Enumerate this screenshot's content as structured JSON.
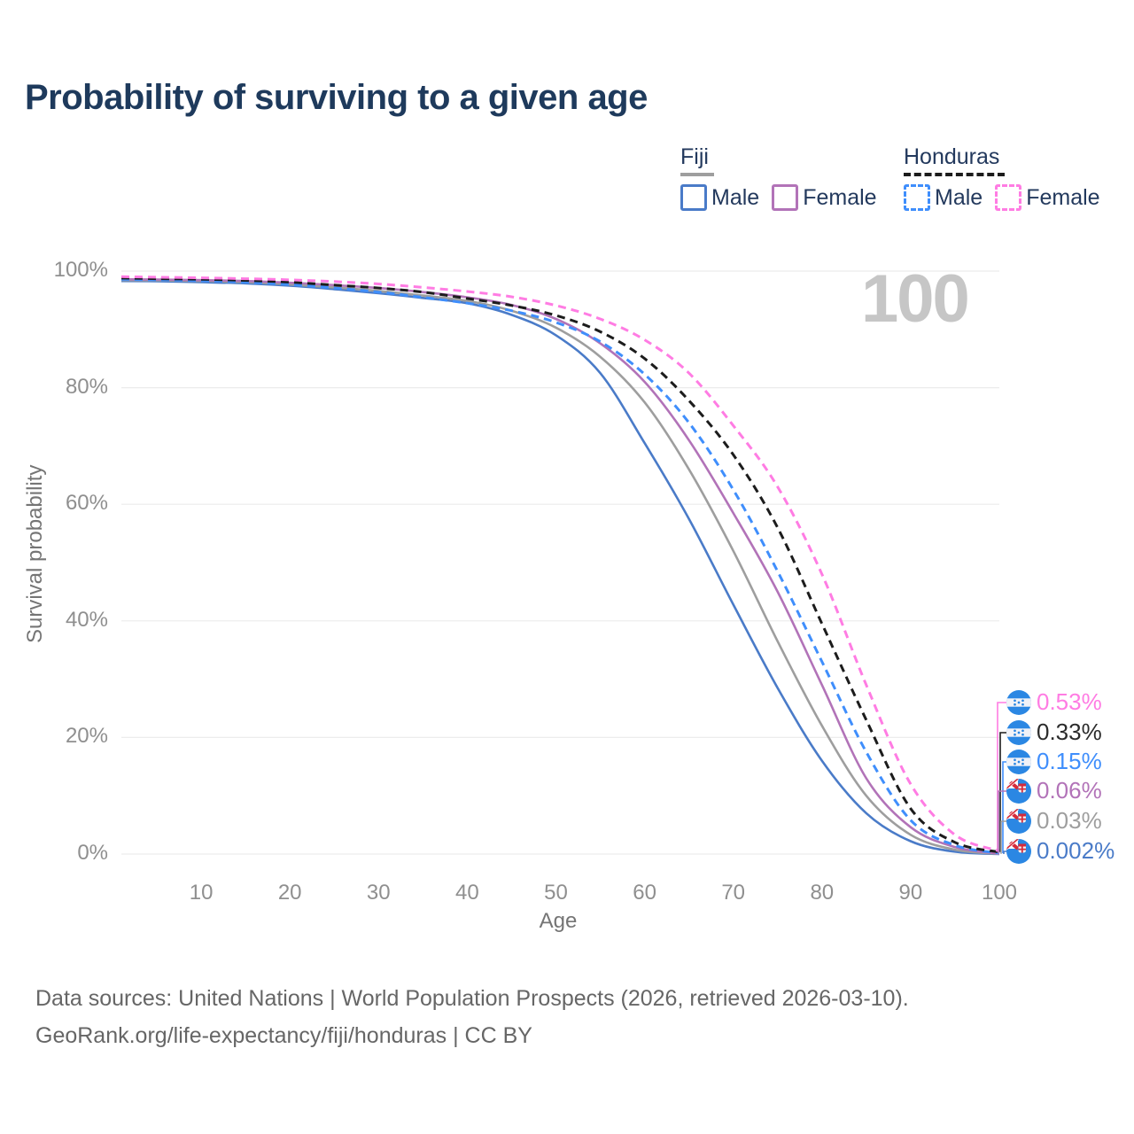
{
  "title": "Probability of surviving to a given age",
  "watermark_age": "100",
  "legend": {
    "groups": [
      {
        "label": "Fiji",
        "line_color": "#9e9e9e",
        "line_style": "solid",
        "items": [
          {
            "label": "Male",
            "color": "#4a7bc8",
            "style": "solid"
          },
          {
            "label": "Female",
            "color": "#b273b8",
            "style": "solid"
          }
        ]
      },
      {
        "label": "Honduras",
        "line_color": "#1c1c1c",
        "line_style": "dashed",
        "items": [
          {
            "label": "Male",
            "color": "#3f8efc",
            "style": "dashed"
          },
          {
            "label": "Female",
            "color": "#ff7ce3",
            "style": "dashed"
          }
        ]
      }
    ]
  },
  "chart_data": {
    "type": "line",
    "title": "Probability of surviving to a given age",
    "xlabel": "Age",
    "ylabel": "Survival probability",
    "xlim": [
      1,
      100
    ],
    "ylim": [
      0,
      100
    ],
    "grid": "horizontal",
    "x_ticks": [
      10,
      20,
      30,
      40,
      50,
      60,
      70,
      80,
      90,
      100
    ],
    "y_ticks_pct": [
      0,
      20,
      40,
      60,
      80,
      100
    ],
    "y_tick_suffix": "%",
    "ages": [
      1,
      5,
      10,
      15,
      20,
      25,
      30,
      35,
      40,
      45,
      50,
      55,
      60,
      65,
      70,
      75,
      80,
      85,
      90,
      95,
      100
    ],
    "series": [
      {
        "name": "Fiji Male",
        "country": "Fiji",
        "sex": "Male",
        "color": "#4a7bc8",
        "dash": "solid",
        "end_value_pct": 0.002,
        "end_label": "0.002%",
        "values": [
          98.3,
          98.25,
          98.1,
          97.9,
          97.5,
          96.9,
          96.2,
          95.4,
          94.5,
          92.5,
          89.0,
          82.5,
          70.5,
          57.5,
          42.8,
          28.5,
          16.0,
          7.0,
          2.2,
          0.4,
          0.002
        ]
      },
      {
        "name": "Fiji All",
        "country": "Fiji",
        "sex": "All",
        "color": "#9e9e9e",
        "dash": "solid",
        "end_value_pct": 0.03,
        "end_label": "0.03%",
        "values": [
          98.45,
          98.4,
          98.3,
          98.1,
          97.7,
          97.2,
          96.6,
          95.8,
          94.9,
          93.2,
          90.3,
          85.3,
          77.5,
          66.0,
          52.0,
          36.5,
          22.0,
          10.0,
          3.3,
          0.75,
          0.03
        ]
      },
      {
        "name": "Fiji Female",
        "country": "Fiji",
        "sex": "Female",
        "color": "#b273b8",
        "dash": "solid",
        "end_value_pct": 0.06,
        "end_label": "0.06%",
        "values": [
          98.6,
          98.55,
          98.45,
          98.3,
          98.0,
          97.6,
          97.1,
          96.4,
          95.5,
          94.2,
          91.8,
          87.6,
          81.0,
          71.0,
          58.5,
          45.0,
          29.0,
          13.0,
          4.6,
          1.2,
          0.06
        ]
      },
      {
        "name": "Honduras Male",
        "country": "Honduras",
        "sex": "Male",
        "color": "#3f8efc",
        "dash": "dashed",
        "end_value_pct": 0.15,
        "end_label": "0.15%",
        "values": [
          98.6,
          98.5,
          98.35,
          98.1,
          97.7,
          97.1,
          96.4,
          95.5,
          94.5,
          93.2,
          91.2,
          87.9,
          82.3,
          74.0,
          62.5,
          48.5,
          33.0,
          17.5,
          5.8,
          1.5,
          0.15
        ]
      },
      {
        "name": "Honduras All",
        "country": "Honduras",
        "sex": "All",
        "color": "#1c1c1c",
        "dash": "dashed",
        "end_value_pct": 0.33,
        "end_label": "0.33%",
        "values": [
          98.8,
          98.7,
          98.6,
          98.4,
          98.1,
          97.6,
          97.1,
          96.4,
          95.3,
          94.1,
          92.4,
          89.6,
          85.0,
          77.8,
          68.5,
          56.0,
          39.5,
          23.0,
          7.8,
          2.0,
          0.33
        ]
      },
      {
        "name": "Honduras Female",
        "country": "Honduras",
        "sex": "Female",
        "color": "#ff7ce3",
        "dash": "dashed",
        "end_value_pct": 0.53,
        "end_label": "0.53%",
        "values": [
          99.05,
          98.95,
          98.85,
          98.7,
          98.5,
          98.2,
          97.8,
          97.2,
          96.5,
          95.6,
          94.1,
          91.8,
          88.2,
          82.5,
          73.5,
          63.0,
          48.0,
          29.0,
          12.0,
          3.3,
          0.53
        ]
      }
    ],
    "end_labels": [
      {
        "text": "0.53%",
        "series": "Honduras Female",
        "color": "#ff7ce3",
        "flag": "honduras-flag-icon"
      },
      {
        "text": "0.33%",
        "series": "Honduras All",
        "color": "#2b2b2b",
        "flag": "honduras-flag-icon"
      },
      {
        "text": "0.15%",
        "series": "Honduras Male",
        "color": "#3f8efc",
        "flag": "honduras-flag-icon"
      },
      {
        "text": "0.06%",
        "series": "Fiji Female",
        "color": "#b273b8",
        "flag": "fiji-flag-icon"
      },
      {
        "text": "0.03%",
        "series": "Fiji All",
        "color": "#9e9e9e",
        "flag": "fiji-flag-icon"
      },
      {
        "text": "0.002%",
        "series": "Fiji Male",
        "color": "#4a7bc8",
        "flag": "fiji-flag-icon"
      }
    ],
    "hover_age_indicator": "100"
  },
  "footer": {
    "line1": "Data sources: United Nations | World Population Prospects (2026, retrieved 2026-03-10).",
    "line2": "GeoRank.org/life-expectancy/fiji/honduras | CC BY"
  }
}
